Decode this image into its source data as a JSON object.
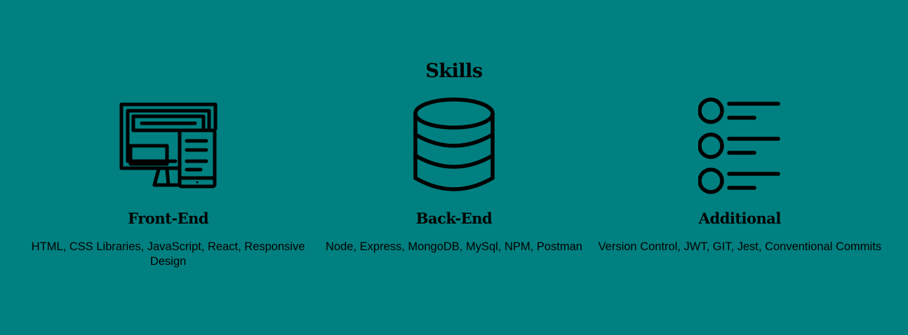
{
  "section": {
    "title": "Skills"
  },
  "colors": {
    "background": "#008080",
    "text": "#000000"
  },
  "skills": [
    {
      "icon": "responsive-devices-icon",
      "title": "Front-End",
      "description": "HTML, CSS Libraries, JavaScript, React, Responsive Design"
    },
    {
      "icon": "database-icon",
      "title": "Back-End",
      "description": "Node, Express, MongoDB, MySql, NPM, Postman"
    },
    {
      "icon": "list-icon",
      "title": "Additional",
      "description": "Version Control, JWT, GIT, Jest, Conventional Commits"
    }
  ]
}
